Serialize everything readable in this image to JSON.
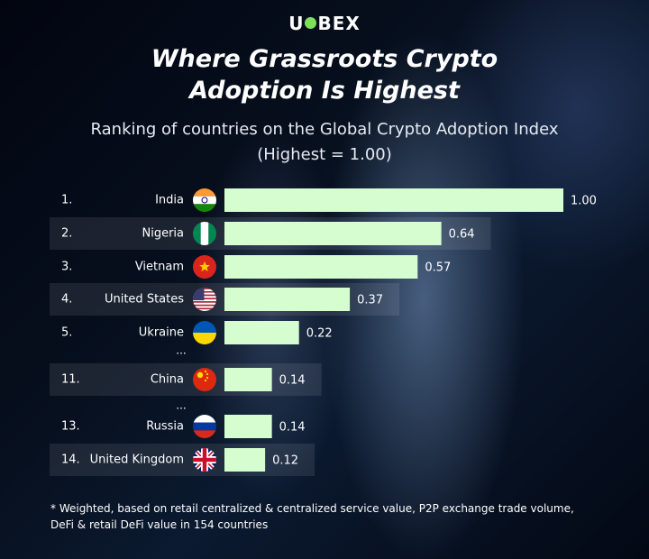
{
  "brand": {
    "name_part1": "U",
    "name_part2": "BEX",
    "logo_dot_color": "#7ee05a"
  },
  "header": {
    "title_line1": "Where Grassroots Crypto",
    "title_line2": "Adoption Is Highest",
    "subtitle_line1": "Ranking of countries on the Global Crypto Adoption Index",
    "subtitle_line2": "(Highest = 1.00)"
  },
  "chart_data": {
    "type": "bar",
    "orientation": "horizontal",
    "title": "Where Grassroots Crypto Adoption Is Highest",
    "subtitle": "Ranking of countries on the Global Crypto Adoption Index (Highest = 1.00)",
    "xlim": [
      0,
      1.0
    ],
    "grid": false,
    "legend": "none",
    "bar_color": "#d6fdd0",
    "label_format": "2dp",
    "rows": [
      {
        "rank": "1.",
        "country": "India",
        "value": 1.0,
        "flag": "india-flag-icon"
      },
      {
        "rank": "2.",
        "country": "Nigeria",
        "value": 0.64,
        "flag": "nigeria-flag-icon"
      },
      {
        "rank": "3.",
        "country": "Vietnam",
        "value": 0.57,
        "flag": "vietnam-flag-icon"
      },
      {
        "rank": "4.",
        "country": "United States",
        "value": 0.37,
        "flag": "usa-flag-icon"
      },
      {
        "rank": "5.",
        "country": "Ukraine",
        "value": 0.22,
        "flag": "ukraine-flag-icon"
      },
      {
        "rank": "11.",
        "country": "China",
        "value": 0.14,
        "flag": "china-flag-icon"
      },
      {
        "rank": "13.",
        "country": "Russia",
        "value": 0.14,
        "flag": "russia-flag-icon"
      },
      {
        "rank": "14.",
        "country": "United Kingdom",
        "value": 0.12,
        "flag": "uk-flag-icon"
      }
    ],
    "gap_marker": "..."
  },
  "footnote": {
    "line1": "* Weighted, based on retail centralized & centralized service value, P2P exchange trade volume,",
    "line2": "DeFi & retail DeFi value in 154 countries"
  }
}
